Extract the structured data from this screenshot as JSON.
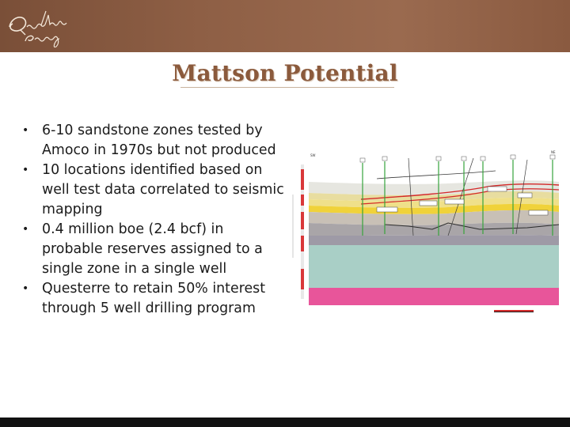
{
  "slide": {
    "title": "Mattson Potential",
    "logo_text": "Questerre Energy",
    "colors": {
      "header": "#8e5f45",
      "title": "#8b5a3c",
      "footer": "#111111"
    }
  },
  "bullets": [
    "6-10 sandstone zones tested by Amoco in 1970s but not produced",
    "10 locations identified based on well test data correlated to seismic mapping",
    "0.4 million boe (2.4 bcf) in probable reserves assigned to a single zone in a single well",
    "Questerre to retain 50% interest through 5 well drilling program"
  ],
  "cross_section": {
    "left_label": "SW",
    "right_label": "NE"
  }
}
